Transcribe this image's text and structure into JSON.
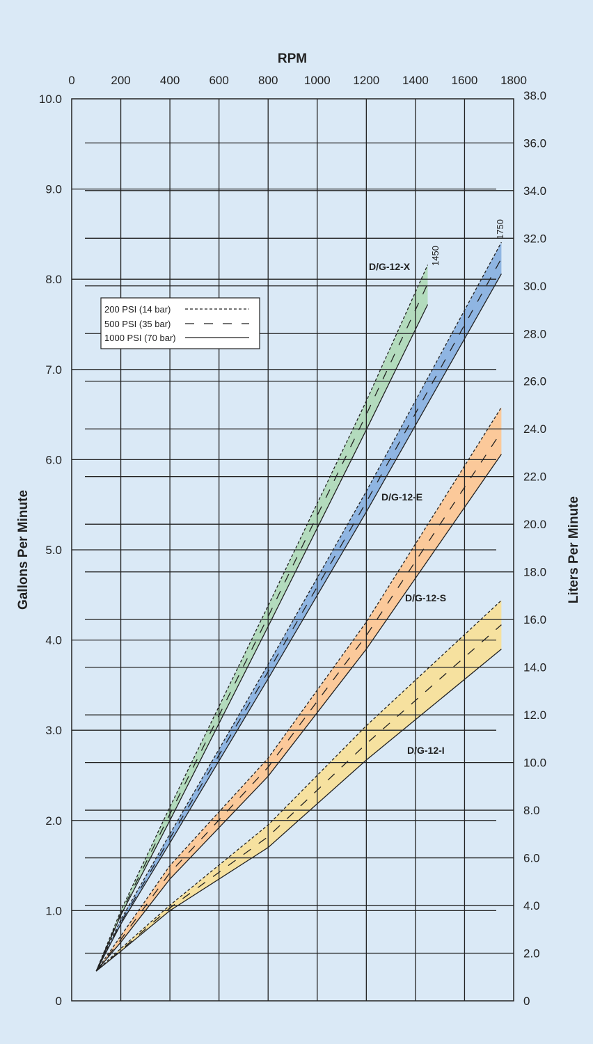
{
  "chart_data": {
    "type": "line",
    "xlabel": "RPM",
    "ylabel": "Gallons Per Minute",
    "y2label": "Liters Per Minute",
    "xlim": [
      0,
      1800
    ],
    "ylim": [
      0,
      10
    ],
    "y2lim": [
      0,
      38
    ],
    "xticks": [
      "0",
      "200",
      "400",
      "600",
      "800",
      "1000",
      "1200",
      "1400",
      "1600",
      "1800"
    ],
    "yticks": [
      "0",
      "1.0",
      "2.0",
      "3.0",
      "4.0",
      "5.0",
      "6.0",
      "7.0",
      "8.0",
      "9.0",
      "10.0"
    ],
    "y2ticks": [
      "0",
      "2.0",
      "4.0",
      "6.0",
      "8.0",
      "10.0",
      "12.0",
      "14.0",
      "16.0",
      "18.0",
      "20.0",
      "22.0",
      "24.0",
      "26.0",
      "28.0",
      "30.0",
      "32.0",
      "34.0",
      "36.0",
      "38.0"
    ],
    "grid": true,
    "legend": {
      "placement": "top-left",
      "entries": [
        {
          "label": "200 PSI (14 bar)",
          "style": "dotted"
        },
        {
          "label": "500 PSI (35 bar)",
          "style": "dashed"
        },
        {
          "label": "1000 PSI (70 bar)",
          "style": "solid"
        }
      ]
    },
    "annotations": [
      "1450",
      "1750"
    ],
    "pumps": [
      {
        "name": "D/G-12-X",
        "color": "#b3dbbd",
        "rpm": [
          100,
          200,
          400,
          800,
          1200,
          1450
        ],
        "psi200": [
          0.33,
          1.0,
          2.15,
          4.38,
          6.65,
          8.16
        ],
        "psi500": [
          0.33,
          0.97,
          2.07,
          4.26,
          6.5,
          7.95
        ],
        "psi1000": [
          0.33,
          0.95,
          2.0,
          4.15,
          6.33,
          7.72
        ]
      },
      {
        "name": "D/G-12-E",
        "color": "#8fb5e2",
        "rpm": [
          100,
          200,
          400,
          800,
          1200,
          1750
        ],
        "psi200": [
          0.33,
          0.9,
          1.85,
          3.73,
          5.65,
          8.41
        ],
        "psi500": [
          0.33,
          0.87,
          1.8,
          3.65,
          5.53,
          8.23
        ],
        "psi1000": [
          0.33,
          0.85,
          1.75,
          3.57,
          5.42,
          8.06
        ]
      },
      {
        "name": "D/G-12-S",
        "color": "#fbc99a",
        "rpm": [
          100,
          200,
          400,
          800,
          1200,
          1750
        ],
        "psi200": [
          0.33,
          0.72,
          1.5,
          2.69,
          4.2,
          6.58
        ],
        "psi500": [
          0.33,
          0.68,
          1.42,
          2.59,
          4.05,
          6.31
        ],
        "psi1000": [
          0.33,
          0.65,
          1.35,
          2.49,
          3.9,
          6.06
        ]
      },
      {
        "name": "D/G-12-I",
        "color": "#f6e19f",
        "rpm": [
          100,
          200,
          400,
          800,
          1200,
          1750
        ],
        "psi200": [
          0.33,
          0.58,
          1.06,
          1.95,
          3.05,
          4.44
        ],
        "psi500": [
          0.33,
          0.56,
          1.03,
          1.82,
          2.85,
          4.17
        ],
        "psi1000": [
          0.33,
          0.55,
          1.0,
          1.7,
          2.67,
          3.9
        ]
      }
    ]
  }
}
